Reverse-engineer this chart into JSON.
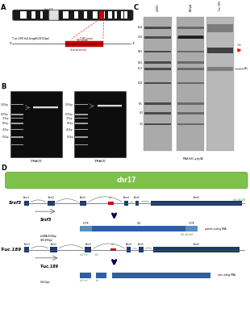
{
  "panel_A_label": "A",
  "panel_B_label": "B",
  "panel_C_label": "C",
  "panel_D_label": "D",
  "chr17_label": "chr17",
  "chr17_bg": "#7dc24a",
  "srsf3_label": "Srsf3",
  "tuc189_label": "T-uc.189",
  "srsf3_mrna_label": "Srsf3",
  "srsf3_info": "(mRNA:2585bp\nCDS:495bp)",
  "srsf3_type": "protein-coding RNA",
  "tuc189_type": "non-coding RNA",
  "race_5_label": "5'RACE",
  "race_3_label": "3'RACE",
  "northern_xlabel": "RNA NSC-poly(A)",
  "northern_bands": [
    "6546",
    "4742",
    "2661",
    "1821",
    "1517",
    "1049",
    "575",
    "463",
    "310"
  ],
  "northern_18s": "18s",
  "dark_blue": "#1a3a6e",
  "medium_blue": "#2e5fa3",
  "light_blue": "#5a8fc0",
  "red_bar": "#cc0000",
  "green_text": "#3a8a3a",
  "bg_white": "#ffffff",
  "bg_gel": "#111111",
  "gel_band_color": "#cccccc",
  "chrom_dark": "#1a1a1a",
  "chrom_white_band": "#ffffff",
  "northern_bg": "#aaaaaa",
  "northern_dark_band": "#333333",
  "northern_lane3_bg": "#c8c8c8"
}
